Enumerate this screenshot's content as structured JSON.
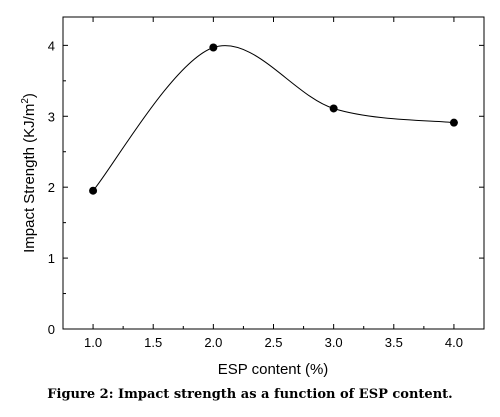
{
  "chart_data": {
    "type": "line",
    "smooth": true,
    "x": [
      1.0,
      2.0,
      3.0,
      4.0
    ],
    "series": [
      {
        "values": [
          1.95,
          3.97,
          3.11,
          2.91
        ]
      }
    ],
    "xlabel": "ESP content (%)",
    "ylabel_main": "Impact Strength (KJ/m",
    "ylabel_sup": "2",
    "ylabel_close": ")",
    "xlim": [
      0.75,
      4.25
    ],
    "ylim": [
      0,
      4.4
    ],
    "x_ticks": [
      1.0,
      1.5,
      2.0,
      2.5,
      3.0,
      3.5,
      4.0
    ],
    "x_tick_labels": [
      "1.0",
      "1.5",
      "2.0",
      "2.5",
      "3.0",
      "3.5",
      "4.0"
    ],
    "y_ticks": [
      0,
      1,
      2,
      3,
      4
    ],
    "y_tick_labels": [
      "0",
      "1",
      "2",
      "3",
      "4"
    ],
    "grid": false,
    "line_color": "#000000",
    "marker_color": "#000000"
  },
  "caption": "Figure 2: Impact strength as a function of ESP content."
}
